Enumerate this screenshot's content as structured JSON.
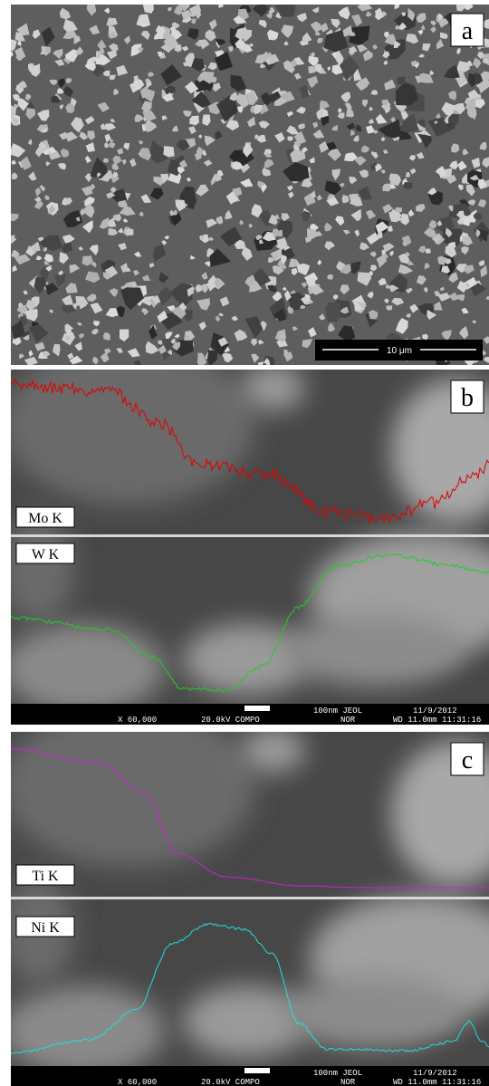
{
  "panels": [
    {
      "label": "a",
      "scale_bar": "10 μm"
    },
    {
      "label": "b",
      "traces": [
        "Mo K",
        "W K"
      ],
      "info": {
        "scale": "100nm JEOL",
        "date": "11/9/2012",
        "magnification": "X 60,000",
        "voltage": "20.0kV COMPO",
        "mode": "NOR",
        "distance_time": "WD 11.0mm 11:31:16"
      }
    },
    {
      "label": "c",
      "traces": [
        "Ti K",
        "Ni K"
      ],
      "info": {
        "scale": "100nm JEOL",
        "date": "11/9/2012",
        "magnification": "X 60,000",
        "voltage": "20.0kV COMPO",
        "mode": "NOR",
        "distance_time": "WD 11.0mm 11:31:16"
      }
    }
  ]
}
